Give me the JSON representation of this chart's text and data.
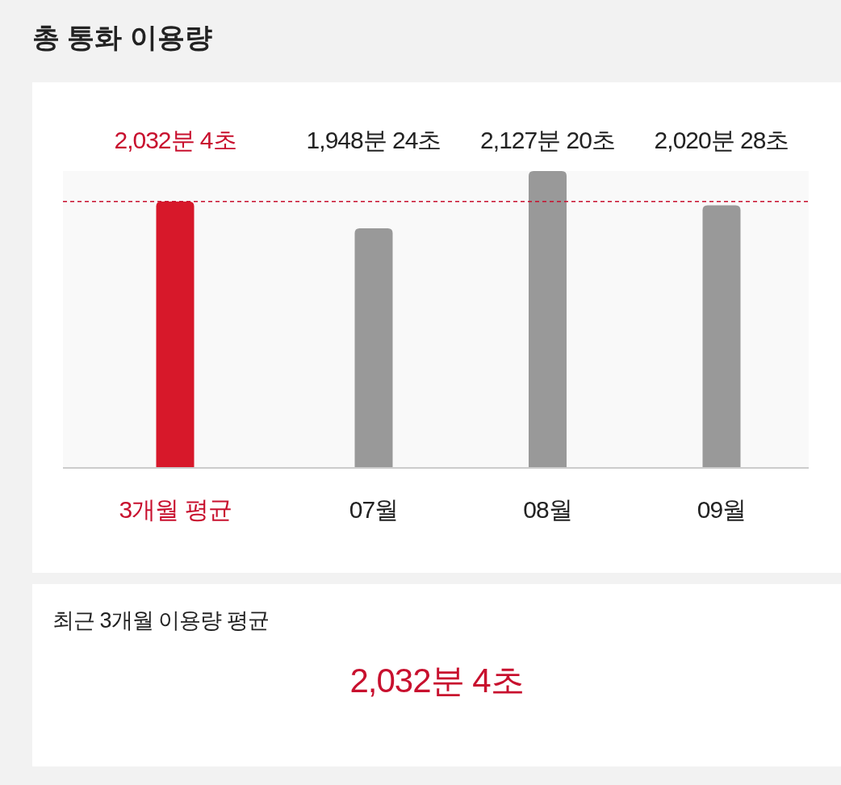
{
  "chart_data": {
    "type": "bar",
    "title": "총 통화 이용량",
    "categories": [
      "3개월 평균",
      "07월",
      "08월",
      "09월"
    ],
    "values": [
      2032.07,
      1948.4,
      2127.33,
      2020.47
    ],
    "colors": [
      "#d7182a",
      "#999999",
      "#999999",
      "#999999"
    ],
    "value_labels": [
      "2,032분 4초",
      "1,948분 24초",
      "2,127분 20초",
      "2,020분 28초"
    ],
    "ylim": [
      1200,
      2127.33
    ],
    "tick_labels": "x",
    "ref_lines": [
      {
        "axis": "y",
        "value": 2032.07,
        "color": "#c8102e",
        "line_style": "dashed"
      }
    ],
    "annotations": [
      "최근 3개월 이용량 평균",
      "2,032분 4초"
    ]
  }
}
